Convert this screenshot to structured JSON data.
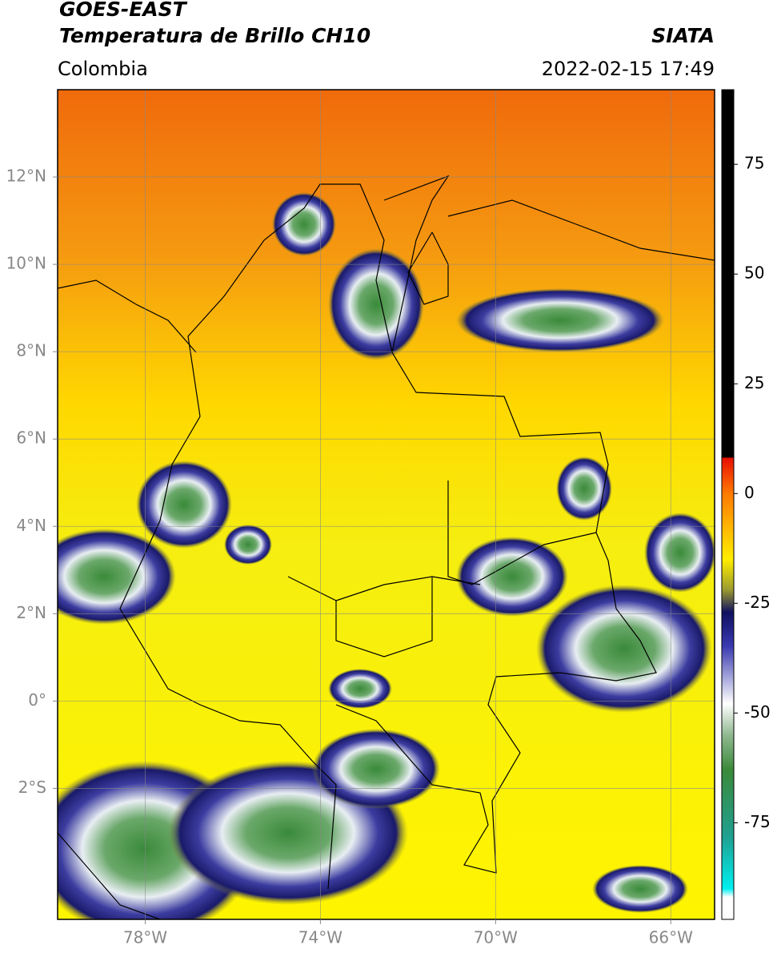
{
  "header": {
    "title": "GOES-EAST",
    "subtitle": "Temperatura de Brillo CH10",
    "source": "SIATA",
    "region": "Colombia",
    "datetime": "2022-02-15 17:49"
  },
  "map": {
    "lon_range": [
      -80,
      -65
    ],
    "lat_range": [
      -5,
      14
    ],
    "lat_ticks": [
      {
        "value": 12,
        "label": "12°N"
      },
      {
        "value": 10,
        "label": "10°N"
      },
      {
        "value": 8,
        "label": "8°N"
      },
      {
        "value": 6,
        "label": "6°N"
      },
      {
        "value": 4,
        "label": "4°N"
      },
      {
        "value": 2,
        "label": "2°N"
      },
      {
        "value": 0,
        "label": "0°"
      },
      {
        "value": -2,
        "label": "2°S"
      }
    ],
    "lon_ticks": [
      {
        "value": -78,
        "label": "78°W"
      },
      {
        "value": -74,
        "label": "74°W"
      },
      {
        "value": -70,
        "label": "70°W"
      },
      {
        "value": -66,
        "label": "66°W"
      }
    ]
  },
  "colorbar": {
    "range": [
      -97,
      92
    ],
    "ticks": [
      75,
      50,
      25,
      0,
      -25,
      -50,
      -75
    ]
  }
}
